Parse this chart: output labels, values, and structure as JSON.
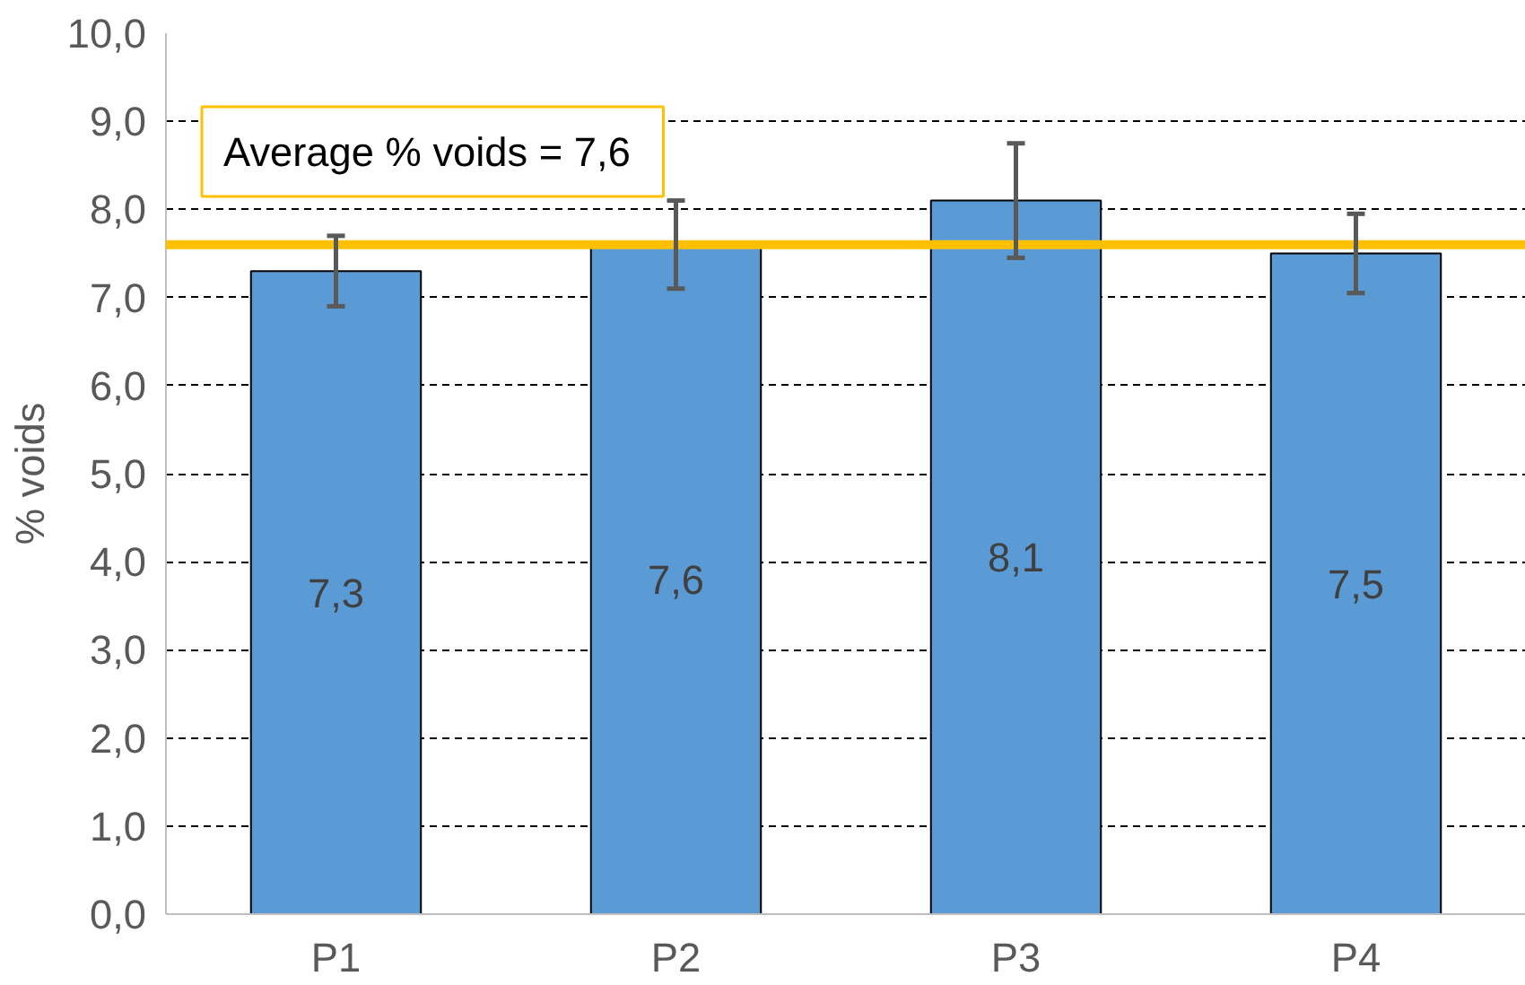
{
  "chart_data": {
    "type": "bar",
    "ylabel": "% voids",
    "categories": [
      "P1",
      "P2",
      "P3",
      "P4"
    ],
    "values": [
      7.3,
      7.6,
      8.1,
      7.5
    ],
    "color": "#5b9bd5",
    "errors": [
      0.4,
      0.5,
      0.65,
      0.45
    ],
    "value_labels": [
      "7,3",
      "7,6",
      "8,1",
      "7,5"
    ],
    "ylim": [
      0,
      10
    ],
    "yticks": [
      {
        "value": 0,
        "label": "0,0"
      },
      {
        "value": 1,
        "label": "1,0"
      },
      {
        "value": 2,
        "label": "2,0"
      },
      {
        "value": 3,
        "label": "3,0"
      },
      {
        "value": 4,
        "label": "4,0"
      },
      {
        "value": 5,
        "label": "5,0"
      },
      {
        "value": 6,
        "label": "6,0"
      },
      {
        "value": 7,
        "label": "7,0"
      },
      {
        "value": 8,
        "label": "8,0"
      },
      {
        "value": 9,
        "label": "9,0"
      },
      {
        "value": 10,
        "label": "10,0"
      }
    ],
    "ref_lines": [
      {
        "axis": "y",
        "value": 7.6,
        "label": "Average  % voids = 7,6",
        "color": "#ffc000",
        "line_style": "solid"
      }
    ],
    "grid": "y"
  }
}
